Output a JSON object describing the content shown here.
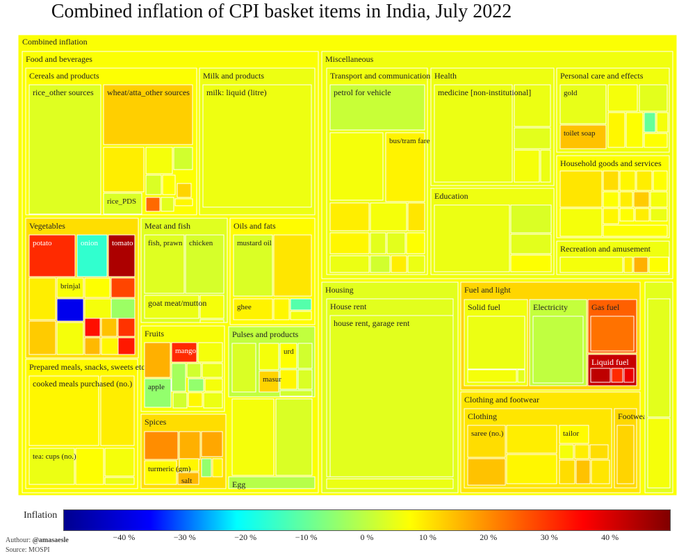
{
  "title": "Combined inflation of CPI basket items in India, July 2022",
  "colorbar": {
    "label": "Inflation",
    "range": [
      -50,
      50
    ],
    "ticks": [
      "−40 %",
      "−30 %",
      "−20 %",
      "−10 %",
      "0 %",
      "10 %",
      "20 %",
      "30 %",
      "40 %"
    ],
    "tick_values": [
      -40,
      -30,
      -20,
      -10,
      0,
      10,
      20,
      30,
      40
    ],
    "colors": [
      "#00008f",
      "#0000ff",
      "#00ffff",
      "#80ff80",
      "#ffff00",
      "#ff8000",
      "#ff0000",
      "#800000"
    ]
  },
  "footer": {
    "author_prefix": "Authour: ",
    "author_handle": "@amasaesle",
    "source": "Source: MOSPI"
  },
  "chart_data": {
    "type": "treemap",
    "root": "Combined inflation",
    "root_inflation": 6.7,
    "groups": [
      {
        "name": "Food and beverages",
        "inflation": 6.7,
        "subgroups": [
          {
            "name": "Cereals and products",
            "inflation": 6.9,
            "items": [
              {
                "name": "rice_other sources",
                "inflation": 3.5
              },
              {
                "name": "wheat/atta_other sources",
                "inflation": 12.5
              },
              {
                "name": "rice_PDS",
                "inflation": 3.0
              }
            ]
          },
          {
            "name": "Milk and products",
            "inflation": 5.1,
            "items": [
              {
                "name": "milk: liquid (litre)",
                "inflation": 5.2
              }
            ]
          },
          {
            "name": "Vegetables",
            "inflation": 10.9,
            "items": [
              {
                "name": "potato",
                "inflation": 31.0
              },
              {
                "name": "onion",
                "inflation": -16.0
              },
              {
                "name": "tomato",
                "inflation": 45.0
              },
              {
                "name": "brinjal",
                "inflation": 6.5
              }
            ]
          },
          {
            "name": "Meat and fish",
            "inflation": 3.6,
            "items": [
              {
                "name": "fish, prawn",
                "inflation": 3.5
              },
              {
                "name": "chicken",
                "inflation": 2.5
              },
              {
                "name": "goat meat/mutton",
                "inflation": 5.0
              }
            ]
          },
          {
            "name": "Oils and fats",
            "inflation": 7.5,
            "items": [
              {
                "name": "mustard oil",
                "inflation": 3.0
              },
              {
                "name": "ghee",
                "inflation": 8.5
              }
            ]
          },
          {
            "name": "Fruits",
            "inflation": 6.4,
            "items": [
              {
                "name": "mango",
                "inflation": 31.0
              },
              {
                "name": "apple",
                "inflation": -5.0
              }
            ]
          },
          {
            "name": "Pulses and products",
            "inflation": 0.2,
            "items": [
              {
                "name": "urd",
                "inflation": 7.0
              },
              {
                "name": "masur",
                "inflation": 12.0
              }
            ]
          },
          {
            "name": "Prepared meals, snacks, sweets etc.",
            "inflation": 7.7,
            "items": [
              {
                "name": "cooked meals purchased  (no.)",
                "inflation": 8.0
              },
              {
                "name": "tea: cups (no.)",
                "inflation": 5.0
              }
            ]
          },
          {
            "name": "Spices",
            "inflation": 11.0,
            "items": [
              {
                "name": "turmeric (gm)",
                "inflation": 7.5
              },
              {
                "name": "salt",
                "inflation": 15.0
              }
            ]
          },
          {
            "name": "Egg",
            "inflation": -1.0,
            "items": []
          }
        ]
      },
      {
        "name": "Miscellaneous",
        "inflation": 5.6,
        "subgroups": [
          {
            "name": "Transport and communication",
            "inflation": 5.4,
            "items": [
              {
                "name": "petrol for vehicle",
                "inflation": 1.0
              },
              {
                "name": "bus/tram fare",
                "inflation": 8.5
              }
            ]
          },
          {
            "name": "Health",
            "inflation": 5.2,
            "items": [
              {
                "name": "medicine [non-institutional]",
                "inflation": 5.0
              }
            ]
          },
          {
            "name": "Personal care and effects",
            "inflation": 5.7,
            "items": [
              {
                "name": "gold",
                "inflation": 4.5
              },
              {
                "name": "toilet soap",
                "inflation": 14.0
              }
            ]
          },
          {
            "name": "Household goods and services",
            "inflation": 6.9,
            "items": []
          },
          {
            "name": "Education",
            "inflation": 5.3,
            "items": []
          },
          {
            "name": "Recreation and amusement",
            "inflation": 5.5,
            "items": []
          }
        ]
      },
      {
        "name": "Housing",
        "inflation": 3.9,
        "subgroups": [
          {
            "name": "House rent",
            "inflation": 3.9,
            "items": [
              {
                "name": "house rent, garage rent",
                "inflation": 3.9
              }
            ]
          }
        ]
      },
      {
        "name": "Fuel and light",
        "inflation": 11.8,
        "subgroups": [
          {
            "name": "Solid fuel",
            "inflation": 5.6,
            "items": []
          },
          {
            "name": "Electricity",
            "inflation": 0.5,
            "items": []
          },
          {
            "name": "Gas fuel",
            "inflation": 25.0,
            "items": []
          },
          {
            "name": "Liquid fuel",
            "inflation": 42.0,
            "items": []
          }
        ]
      },
      {
        "name": "Clothing and footwear",
        "inflation": 9.9,
        "subgroups": [
          {
            "name": "Clothing",
            "inflation": 9.9,
            "items": [
              {
                "name": "saree (no.)",
                "inflation": 11.0
              },
              {
                "name": "tailor",
                "inflation": 7.5
              }
            ]
          },
          {
            "name": "Footwear",
            "inflation": 11.5,
            "items": []
          }
        ]
      }
    ]
  }
}
